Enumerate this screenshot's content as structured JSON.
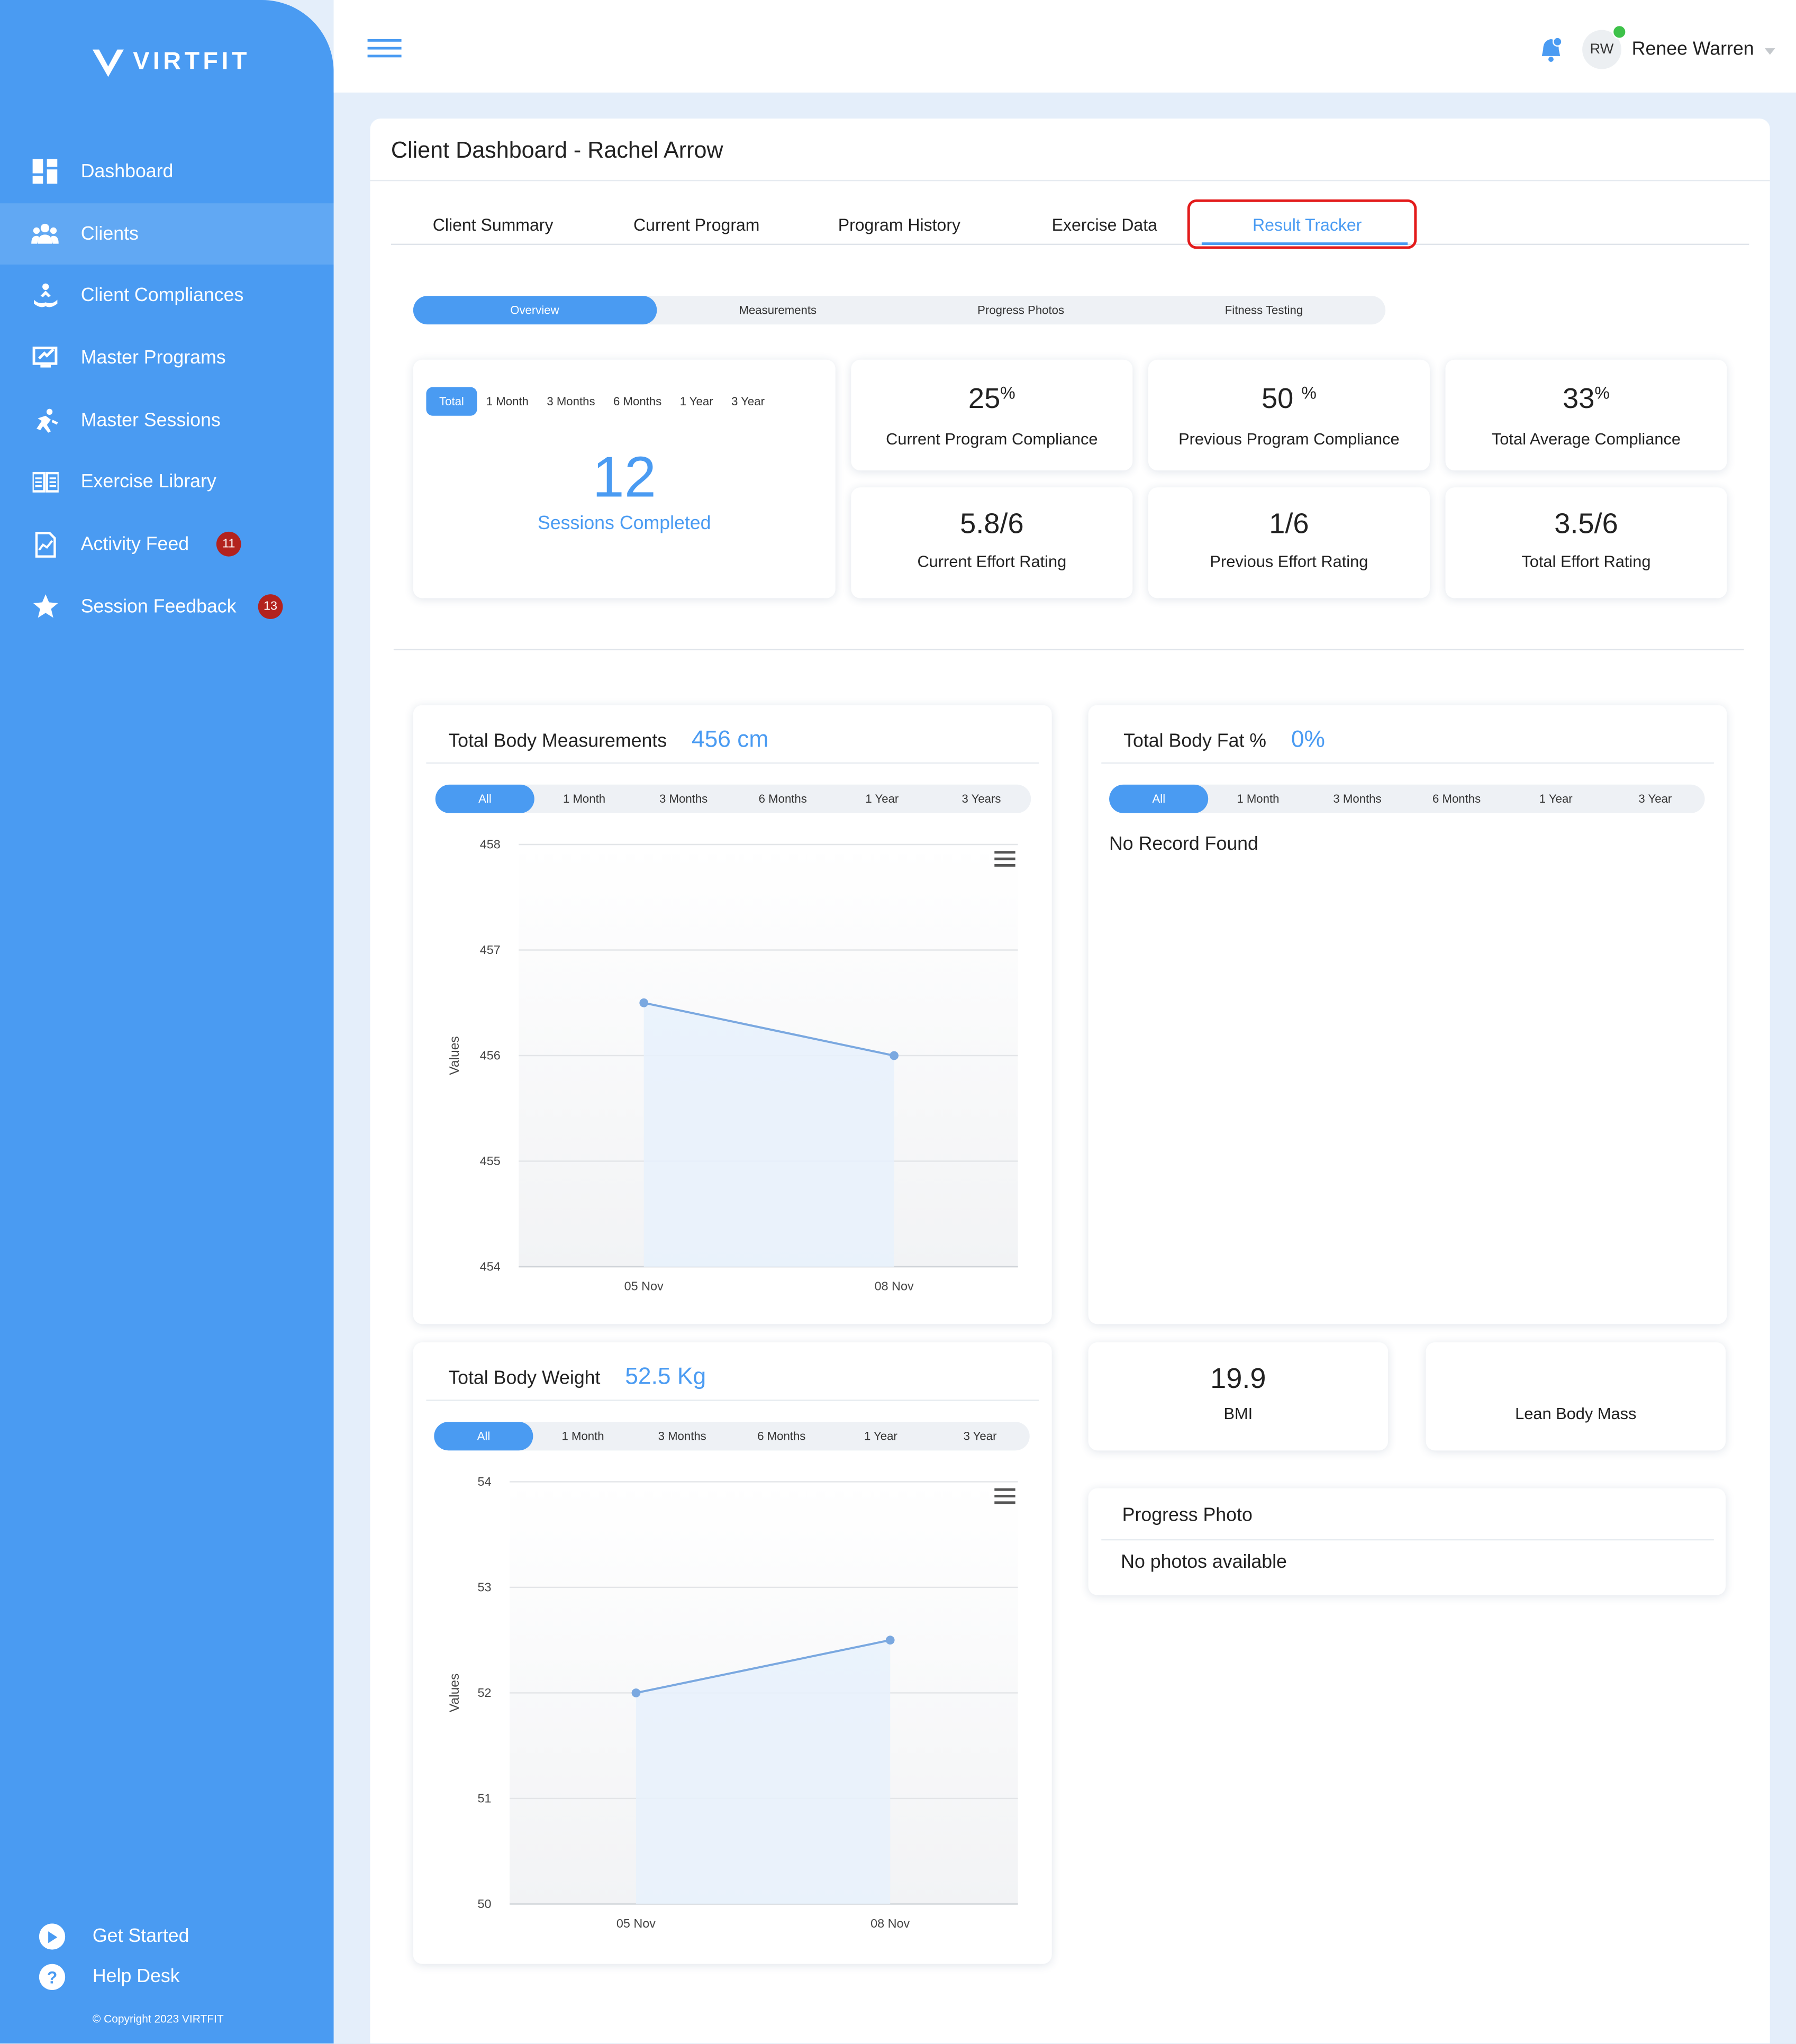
{
  "brand": {
    "name": "VIRTFIT"
  },
  "sidebar": {
    "items": [
      {
        "label": "Dashboard",
        "icon": "dashboard-icon",
        "active": false
      },
      {
        "label": "Clients",
        "icon": "users-icon",
        "active": true
      },
      {
        "label": "Client Compliances",
        "icon": "compliance-icon",
        "active": false
      },
      {
        "label": "Master Programs",
        "icon": "programs-icon",
        "active": false
      },
      {
        "label": "Master Sessions",
        "icon": "sessions-icon",
        "active": false
      },
      {
        "label": "Exercise Library",
        "icon": "library-icon",
        "active": false
      },
      {
        "label": "Activity Feed",
        "icon": "activity-icon",
        "badge": "11",
        "active": false
      },
      {
        "label": "Session Feedback",
        "icon": "star-icon",
        "badge": "13",
        "active": false
      }
    ],
    "bottom": [
      {
        "label": "Get Started",
        "icon": "play-icon"
      },
      {
        "label": "Help Desk",
        "icon": "help-icon"
      }
    ],
    "copyright": "© Copyright 2023 VIRTFIT"
  },
  "header": {
    "avatar_initials": "RW",
    "user_name": "Renee Warren"
  },
  "page": {
    "title": "Client Dashboard - Rachel Arrow",
    "tabs": [
      "Client Summary",
      "Current Program",
      "Program History",
      "Exercise Data",
      "Result Tracker"
    ],
    "active_tab": "Result Tracker",
    "subtabs": [
      "Overview",
      "Measurements",
      "Progress Photos",
      "Fitness Testing"
    ],
    "active_subtab": "Overview"
  },
  "sessions": {
    "ranges": [
      "Total",
      "1 Month",
      "3 Months",
      "6 Months",
      "1 Year",
      "3 Year"
    ],
    "active_range": "Total",
    "value": "12",
    "label": "Sessions Completed"
  },
  "stats": [
    {
      "value": "25",
      "suffix": "%",
      "label": "Current Program Compliance"
    },
    {
      "value": "50 ",
      "suffix": "%",
      "label": "Previous Program Compliance"
    },
    {
      "value": "33",
      "suffix": "%",
      "label": "Total Average Compliance"
    },
    {
      "value": "5.8/6",
      "suffix": "",
      "label": "Current Effort Rating"
    },
    {
      "value": "1/6",
      "suffix": "",
      "label": "Previous Effort Rating"
    },
    {
      "value": "3.5/6",
      "suffix": "",
      "label": "Total Effort Rating"
    }
  ],
  "body_measurements": {
    "title": "Total Body Measurements",
    "value": "456 cm",
    "ranges": [
      "All",
      "1 Month",
      "3 Months",
      "6 Months",
      "1 Year",
      "3 Years"
    ],
    "active_range": "All"
  },
  "body_fat": {
    "title": "Total Body Fat %",
    "value": "0%",
    "ranges": [
      "All",
      "1 Month",
      "3 Months",
      "6 Months",
      "1 Year",
      "3 Year"
    ],
    "active_range": "All",
    "empty_text": "No Record Found"
  },
  "body_weight": {
    "title": "Total Body Weight",
    "value": "52.5 Kg",
    "ranges": [
      "All",
      "1 Month",
      "3 Months",
      "6 Months",
      "1 Year",
      "3 Year"
    ],
    "active_range": "All"
  },
  "bmi": {
    "value": "19.9",
    "label": "BMI"
  },
  "lean_body_mass": {
    "value": "",
    "label": "Lean Body Mass"
  },
  "progress_photo": {
    "title": "Progress Photo",
    "empty_text": "No photos available"
  },
  "colors": {
    "accent": "#4a9bf2",
    "sidebar": "#4a9bf2",
    "badge": "#b3221e",
    "highlight": "#e31b1b"
  },
  "chart_data": [
    {
      "type": "area",
      "x": [
        "05 Nov",
        "08 Nov"
      ],
      "series": [
        {
          "values": [
            456.5,
            456
          ]
        }
      ],
      "ylabel": "Values",
      "ylim": [
        454,
        458
      ],
      "yticks": [
        458,
        457,
        456,
        455,
        454
      ],
      "grid": true
    },
    {
      "type": "area",
      "x": [
        "05 Nov",
        "08 Nov"
      ],
      "series": [
        {
          "values": [
            52,
            52.5
          ]
        }
      ],
      "ylabel": "Values",
      "ylim": [
        50,
        54
      ],
      "yticks": [
        54,
        53,
        52,
        51,
        50
      ],
      "grid": true
    }
  ]
}
